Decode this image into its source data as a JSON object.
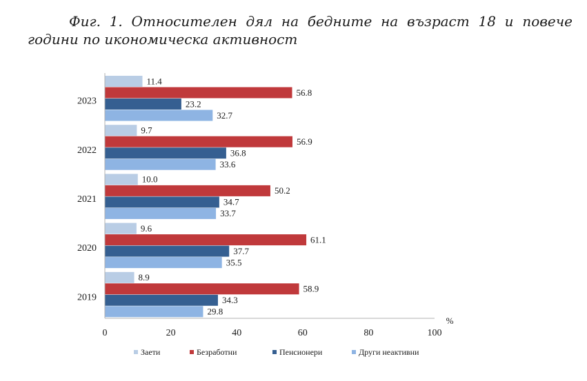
{
  "figure": {
    "title": "Фиг. 1. Относителен дял на бедните на възраст 18 и повече години по икономическа активност"
  },
  "chart_data": {
    "type": "bar",
    "orientation": "horizontal",
    "categories": [
      "2023",
      "2022",
      "2021",
      "2020",
      "2019"
    ],
    "series": [
      {
        "name": "Заети",
        "color": "#b9cde5",
        "values": [
          11.4,
          9.7,
          10.0,
          9.6,
          8.9
        ]
      },
      {
        "name": "Безработни",
        "color": "#c0393b",
        "values": [
          56.8,
          56.9,
          50.2,
          61.1,
          58.9
        ]
      },
      {
        "name": "Пенсионери",
        "color": "#355f91",
        "values": [
          23.2,
          36.8,
          34.7,
          37.7,
          34.3
        ]
      },
      {
        "name": "Други неактивни",
        "color": "#8eb4e3",
        "values": [
          32.7,
          33.6,
          33.7,
          35.5,
          29.8
        ]
      }
    ],
    "value_labels": [
      [
        "11.4",
        "56.8",
        "23.2",
        "32.7"
      ],
      [
        "9.7",
        "56.9",
        "36.8",
        "33.6"
      ],
      [
        "10.0",
        "50.2",
        "34.7",
        "33.7"
      ],
      [
        "9.6",
        "61.1",
        "37.7",
        "35.5"
      ],
      [
        "8.9",
        "58.9",
        "34.3",
        "29.8"
      ]
    ],
    "x_ticks": [
      "0",
      "20",
      "40",
      "60",
      "80",
      "100"
    ],
    "xlim": [
      0,
      100
    ],
    "unit_label": "%",
    "grid": false,
    "legend_position": "bottom"
  }
}
